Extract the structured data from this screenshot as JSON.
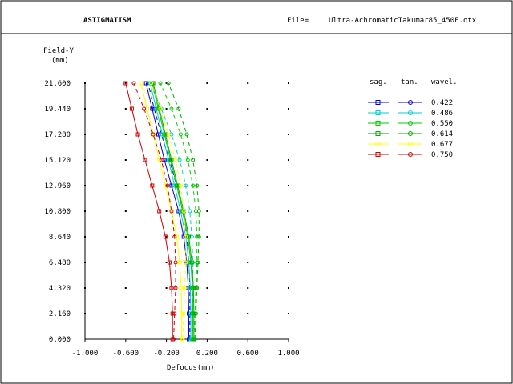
{
  "header": {
    "title": "ASTIGMATISM",
    "file_label": "File=",
    "file_name": "Ultra-AchromaticTakumar85_450F.otx"
  },
  "chart_data": {
    "type": "line",
    "title": "ASTIGMATISM",
    "xlabel": "Defocus(mm)",
    "ylabel": "Field-Y",
    "ylabel_unit": "(mm)",
    "xlim": [
      -1.0,
      1.0
    ],
    "ylim": [
      0.0,
      21.6
    ],
    "x_ticks": [
      "-1.000",
      "-0.600",
      "-0.200",
      "0.200",
      "0.600",
      "1.000"
    ],
    "y_ticks": [
      "0.000",
      "2.160",
      "4.320",
      "6.480",
      "8.640",
      "10.800",
      "12.960",
      "15.120",
      "17.280",
      "19.440",
      "21.600"
    ],
    "grid": "dots",
    "legend": {
      "placement": "top-right",
      "headers": [
        "sag.",
        "tan.",
        "wavel."
      ]
    },
    "field": [
      0,
      2.16,
      4.32,
      6.48,
      8.64,
      10.8,
      12.96,
      15.12,
      17.28,
      19.44,
      21.6
    ],
    "series": [
      {
        "name": "0.422",
        "color": "#0000cc",
        "marker": "square",
        "sag": [
          0.02,
          0.02,
          0.015,
          0.0,
          -0.03,
          -0.08,
          -0.15,
          -0.22,
          -0.28,
          -0.34,
          -0.4
        ],
        "tan": [
          0.03,
          0.03,
          0.03,
          0.02,
          0.0,
          -0.04,
          -0.1,
          -0.17,
          -0.25,
          -0.32,
          -0.38
        ]
      },
      {
        "name": "0.486",
        "color": "#00cccc",
        "marker": "square",
        "sag": [
          0.04,
          0.04,
          0.035,
          0.02,
          -0.01,
          -0.06,
          -0.12,
          -0.18,
          -0.24,
          -0.3,
          -0.36
        ],
        "tan": [
          0.05,
          0.06,
          0.06,
          0.06,
          0.05,
          0.03,
          -0.01,
          -0.07,
          -0.15,
          -0.25,
          -0.36
        ]
      },
      {
        "name": "0.550",
        "color": "#00cc00",
        "marker": "square",
        "sag": [
          0.06,
          0.06,
          0.055,
          0.04,
          0.01,
          -0.04,
          -0.1,
          -0.16,
          -0.22,
          -0.28,
          -0.34
        ],
        "tan": [
          0.07,
          0.08,
          0.09,
          0.1,
          0.1,
          0.09,
          0.06,
          0.01,
          -0.06,
          -0.15,
          -0.26
        ]
      },
      {
        "name": "0.614",
        "color": "#00aa00",
        "marker": "square",
        "sag": [
          0.07,
          0.07,
          0.065,
          0.05,
          0.02,
          -0.03,
          -0.09,
          -0.15,
          -0.21,
          -0.27,
          -0.33
        ],
        "tan": [
          0.08,
          0.09,
          0.1,
          0.11,
          0.12,
          0.12,
          0.1,
          0.06,
          0.0,
          -0.08,
          -0.18
        ]
      },
      {
        "name": "0.677",
        "color": "#ffff00",
        "marker": "square",
        "sag": [
          -0.05,
          -0.05,
          -0.055,
          -0.07,
          -0.1,
          -0.15,
          -0.21,
          -0.27,
          -0.33,
          -0.39,
          -0.45
        ],
        "tan": [
          -0.04,
          -0.03,
          -0.02,
          -0.01,
          -0.01,
          -0.03,
          -0.06,
          -0.11,
          -0.18,
          -0.26,
          -0.35
        ]
      },
      {
        "name": "0.750",
        "color": "#cc0000",
        "marker": "square",
        "sag": [
          -0.14,
          -0.14,
          -0.15,
          -0.17,
          -0.21,
          -0.27,
          -0.34,
          -0.41,
          -0.48,
          -0.54,
          -0.6
        ],
        "tan": [
          -0.13,
          -0.12,
          -0.11,
          -0.11,
          -0.12,
          -0.15,
          -0.19,
          -0.25,
          -0.33,
          -0.42,
          -0.52
        ]
      }
    ]
  }
}
